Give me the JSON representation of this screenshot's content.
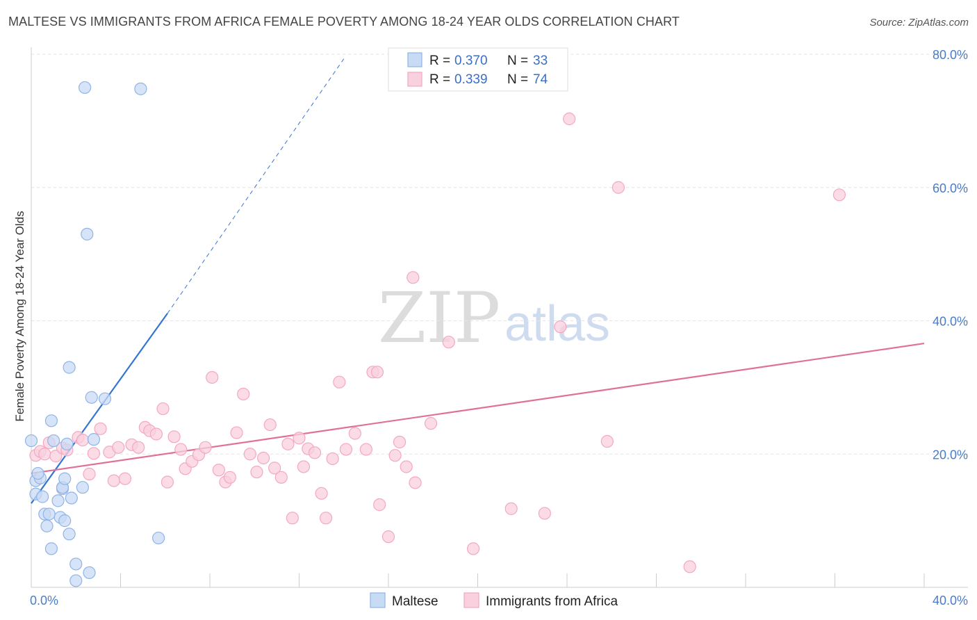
{
  "title": "MALTESE VS IMMIGRANTS FROM AFRICA FEMALE POVERTY AMONG 18-24 YEAR OLDS CORRELATION CHART",
  "source": "Source: ZipAtlas.com",
  "watermark": {
    "zip": "ZIP",
    "atlas": "atlas"
  },
  "chart_data": {
    "type": "scatter",
    "title": "MALTESE VS IMMIGRANTS FROM AFRICA FEMALE POVERTY AMONG 18-24 YEAR OLDS CORRELATION CHART",
    "xlabel": "",
    "ylabel": "Female Poverty Among 18-24 Year Olds",
    "xlim": [
      0,
      40
    ],
    "ylim": [
      0,
      80
    ],
    "x_tick_labels": [
      {
        "value": 0,
        "label": "0.0%"
      },
      {
        "value": 40,
        "label": "40.0%"
      }
    ],
    "y_tick_labels": [
      {
        "value": 20,
        "label": "20.0%"
      },
      {
        "value": 40,
        "label": "40.0%"
      },
      {
        "value": 60,
        "label": "60.0%"
      },
      {
        "value": 80,
        "label": "80.0%"
      }
    ],
    "legend": {
      "position": "top-center",
      "entries": [
        {
          "r_label": "R =",
          "r_value": "0.370",
          "n_label": "N =",
          "n_value": "33"
        },
        {
          "r_label": "R =",
          "r_value": "0.339",
          "n_label": "N =",
          "n_value": "74"
        }
      ]
    },
    "series": [
      {
        "name": "Maltese",
        "color": "#8fb4e8",
        "fill": "#c9daf4",
        "line_color": "#3575d1",
        "trend": {
          "solid": [
            [
              0,
              12.6
            ],
            [
              6.1,
              41.1
            ]
          ],
          "dashed": [
            [
              6.1,
              41.1
            ],
            [
              14,
              79.3
            ]
          ]
        },
        "points": [
          [
            0,
            22
          ],
          [
            0.2,
            16
          ],
          [
            0.2,
            14
          ],
          [
            0.4,
            16.4
          ],
          [
            0.5,
            13.6
          ],
          [
            0.6,
            11
          ],
          [
            0.7,
            9.2
          ],
          [
            0.8,
            11
          ],
          [
            0.9,
            5.8
          ],
          [
            0.9,
            25
          ],
          [
            1.0,
            22
          ],
          [
            1.2,
            13
          ],
          [
            1.3,
            10.5
          ],
          [
            1.4,
            14.8
          ],
          [
            1.5,
            10
          ],
          [
            1.6,
            21.5
          ],
          [
            1.7,
            8
          ],
          [
            1.7,
            33
          ],
          [
            1.8,
            13.4
          ],
          [
            1.4,
            15
          ],
          [
            2.0,
            3.5
          ],
          [
            2.0,
            1
          ],
          [
            2.3,
            15
          ],
          [
            2.4,
            75
          ],
          [
            2.5,
            53
          ],
          [
            2.6,
            2.2
          ],
          [
            2.7,
            28.5
          ],
          [
            2.8,
            22.2
          ],
          [
            3.3,
            28.3
          ],
          [
            4.9,
            74.8
          ],
          [
            5.7,
            7.4
          ],
          [
            1.5,
            16.3
          ],
          [
            0.3,
            17.1
          ]
        ]
      },
      {
        "name": "Immigrants from Africa",
        "color": "#f3a8c0",
        "fill": "#f9d0dd",
        "line_color": "#e0709a",
        "trend": {
          "solid": [
            [
              0,
              17.1
            ],
            [
              40,
              36.6
            ]
          ]
        },
        "points": [
          [
            0.2,
            19.8
          ],
          [
            0.4,
            20.4
          ],
          [
            0.6,
            20
          ],
          [
            0.8,
            21.7
          ],
          [
            1.1,
            19.7
          ],
          [
            1.4,
            20.9
          ],
          [
            1.6,
            20.6
          ],
          [
            2.1,
            22.5
          ],
          [
            2.3,
            22.1
          ],
          [
            2.6,
            17
          ],
          [
            2.8,
            20.1
          ],
          [
            3.1,
            23.8
          ],
          [
            3.5,
            20.3
          ],
          [
            3.7,
            16
          ],
          [
            3.9,
            21
          ],
          [
            4.2,
            16.3
          ],
          [
            4.5,
            21.4
          ],
          [
            4.8,
            21
          ],
          [
            5.1,
            24
          ],
          [
            5.3,
            23.5
          ],
          [
            5.6,
            23
          ],
          [
            5.9,
            26.8
          ],
          [
            6.1,
            15.8
          ],
          [
            6.4,
            22.6
          ],
          [
            6.7,
            20.7
          ],
          [
            6.9,
            17.8
          ],
          [
            7.2,
            18.9
          ],
          [
            7.5,
            19.9
          ],
          [
            7.8,
            21
          ],
          [
            8.1,
            31.5
          ],
          [
            8.4,
            17.6
          ],
          [
            8.7,
            15.8
          ],
          [
            8.9,
            16.5
          ],
          [
            9.2,
            23.2
          ],
          [
            9.5,
            29
          ],
          [
            9.8,
            20
          ],
          [
            10.1,
            17.3
          ],
          [
            10.4,
            19.4
          ],
          [
            10.7,
            24.4
          ],
          [
            10.9,
            17.9
          ],
          [
            11.2,
            16.5
          ],
          [
            11.5,
            21.5
          ],
          [
            11.7,
            10.4
          ],
          [
            12.0,
            22.4
          ],
          [
            12.2,
            18.1
          ],
          [
            12.4,
            20.8
          ],
          [
            12.7,
            20.2
          ],
          [
            13.0,
            14.1
          ],
          [
            13.2,
            10.4
          ],
          [
            13.5,
            19.3
          ],
          [
            13.8,
            30.8
          ],
          [
            14.1,
            20.7
          ],
          [
            14.5,
            23.1
          ],
          [
            15.0,
            20.7
          ],
          [
            15.3,
            32.3
          ],
          [
            15.5,
            32.3
          ],
          [
            15.6,
            12.4
          ],
          [
            16.0,
            7.6
          ],
          [
            16.3,
            19.8
          ],
          [
            16.5,
            21.8
          ],
          [
            16.8,
            18.1
          ],
          [
            17.1,
            46.5
          ],
          [
            17.2,
            15.7
          ],
          [
            17.9,
            24.6
          ],
          [
            18.7,
            36.8
          ],
          [
            19.8,
            5.8
          ],
          [
            21.5,
            11.8
          ],
          [
            23.0,
            11.1
          ],
          [
            23.7,
            39.1
          ],
          [
            24.1,
            70.3
          ],
          [
            25.8,
            21.9
          ],
          [
            26.3,
            60
          ],
          [
            29.5,
            3.1
          ],
          [
            36.2,
            58.9
          ]
        ]
      }
    ]
  },
  "bottom_legend": [
    {
      "label": "Maltese"
    },
    {
      "label": "Immigrants from Africa"
    }
  ]
}
